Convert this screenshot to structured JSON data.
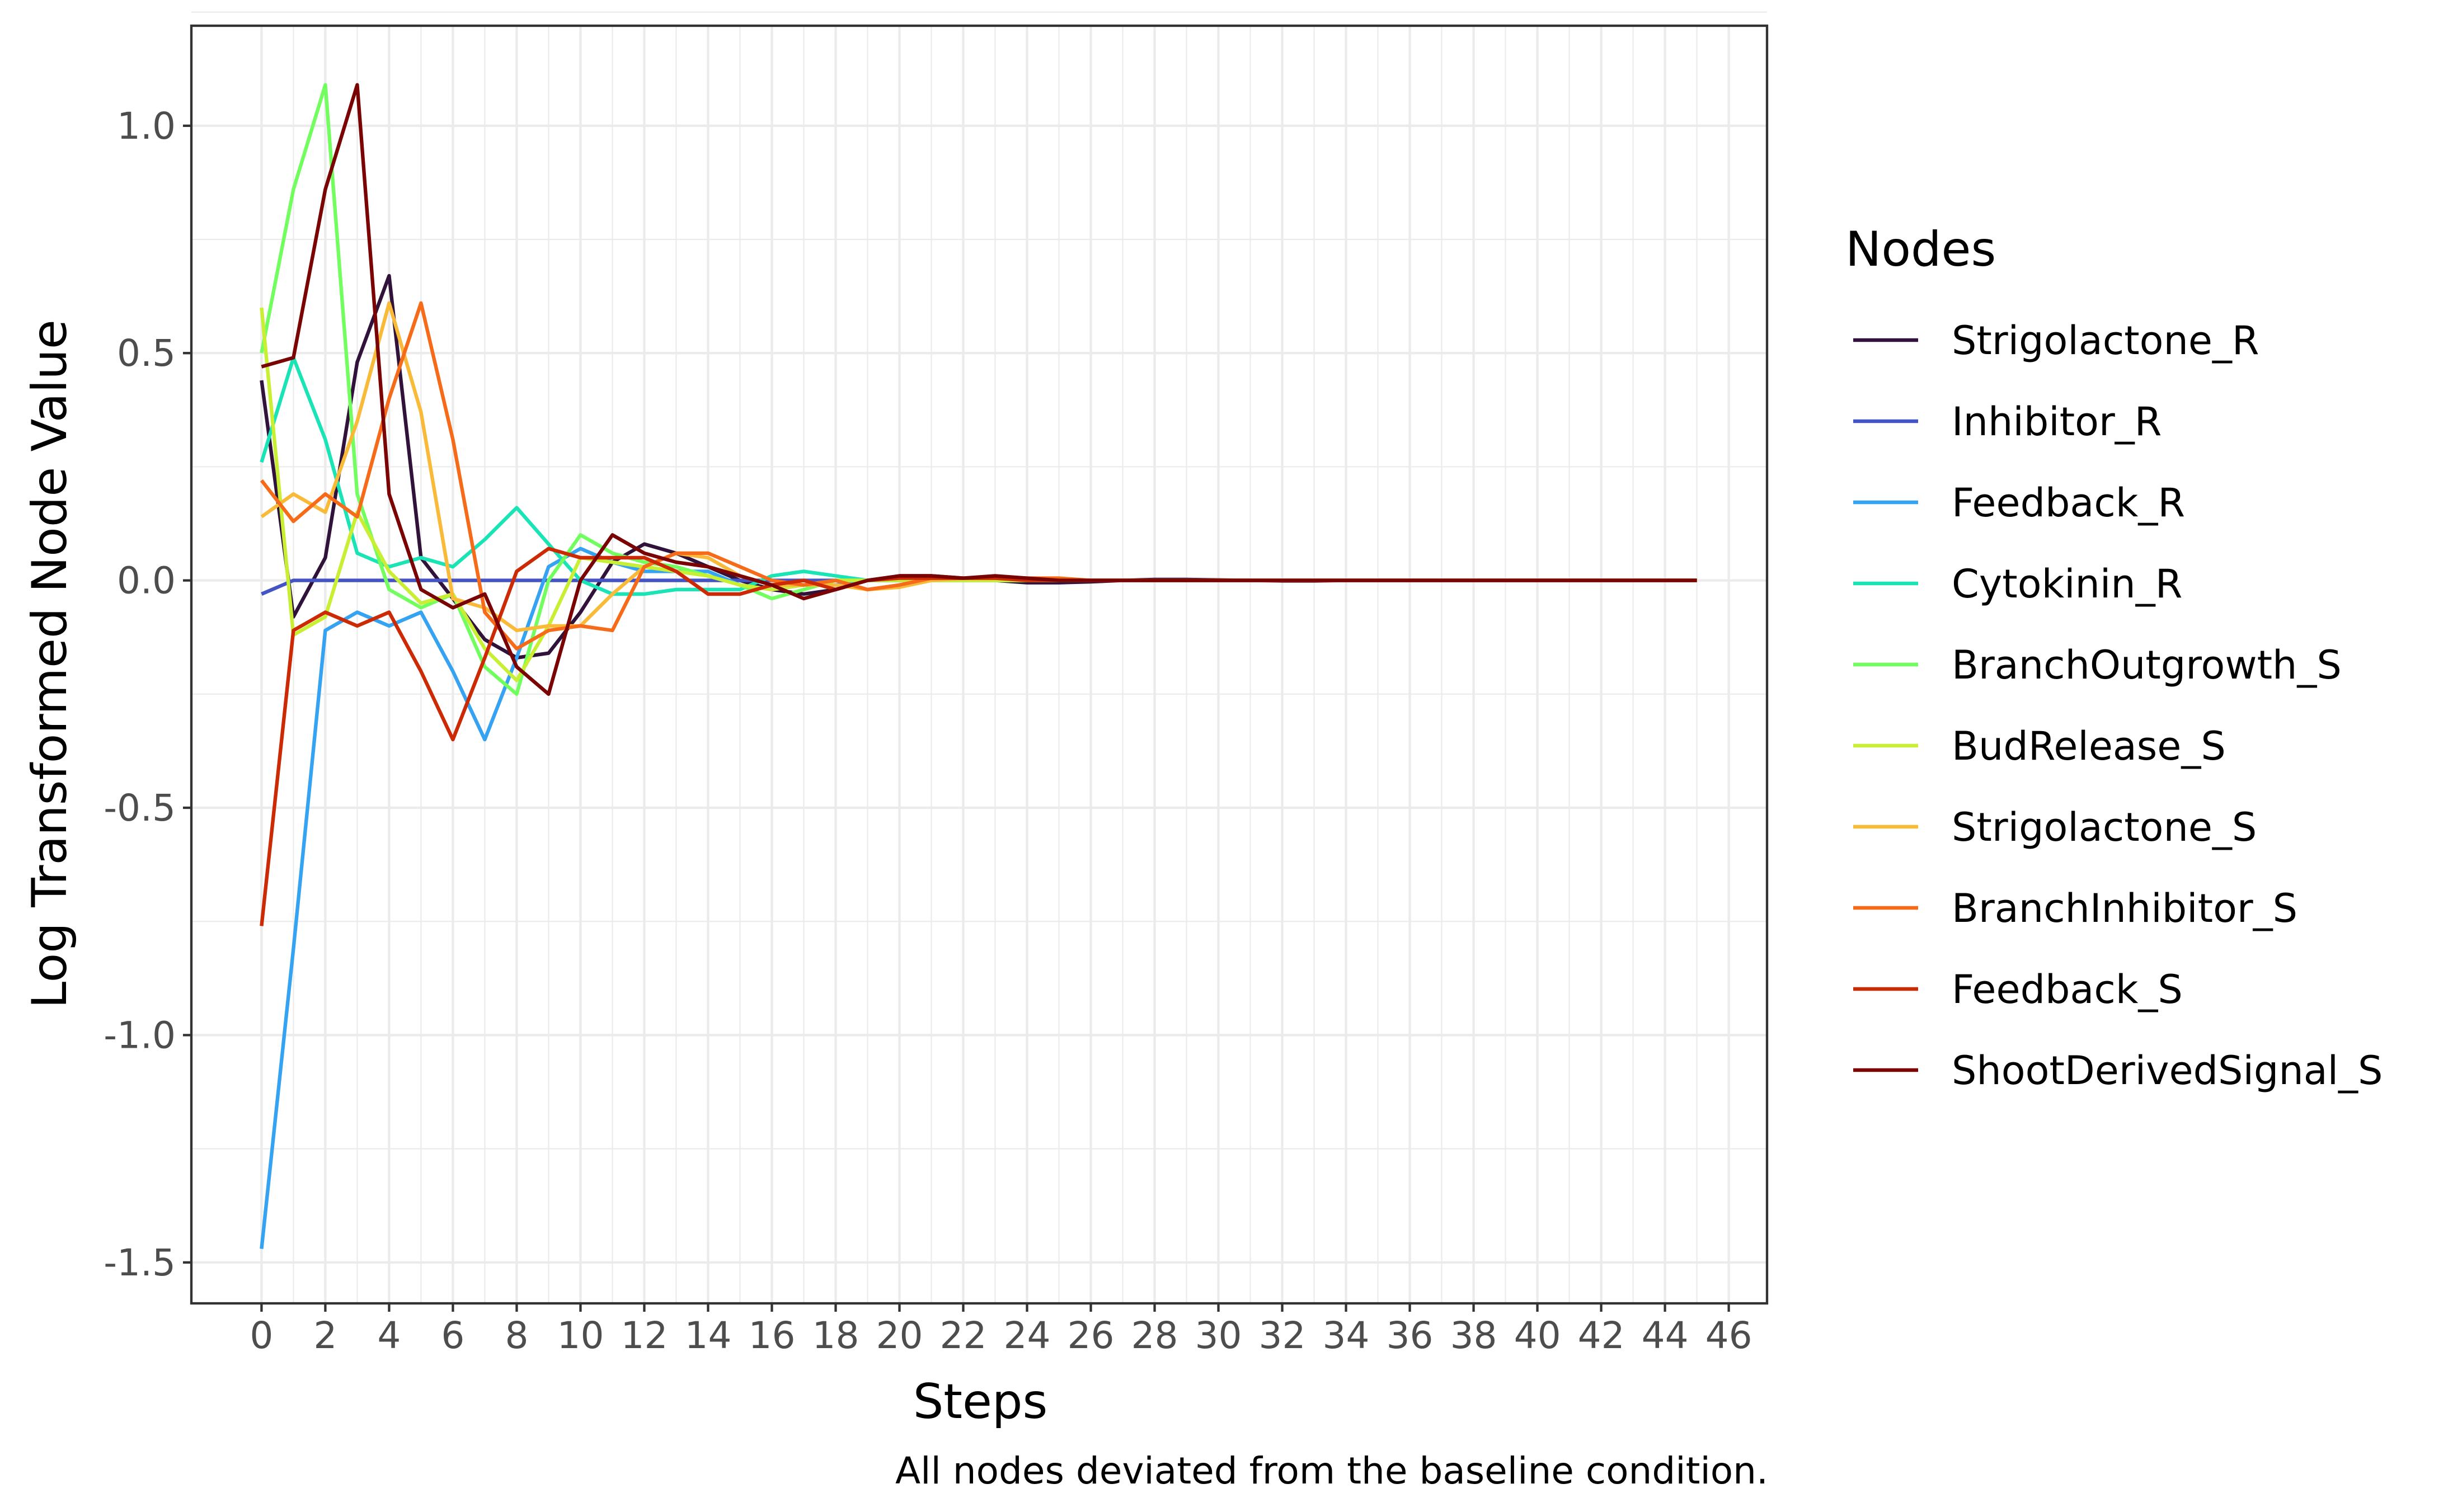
{
  "chart_data": {
    "type": "line",
    "title": "",
    "xlabel": "Steps",
    "ylabel": "Log Transformed Node Value",
    "caption": "All nodes deviated from the baseline condition.",
    "legend_title": "Nodes",
    "legend_position": "right",
    "grid": true,
    "xlim": [
      -2.2,
      47.2
    ],
    "ylim": [
      -1.59,
      1.22
    ],
    "x_ticks": [
      0,
      2,
      4,
      6,
      8,
      10,
      12,
      14,
      16,
      18,
      20,
      22,
      24,
      26,
      28,
      30,
      32,
      34,
      36,
      38,
      40,
      42,
      44,
      46
    ],
    "x_tick_labels": [
      "0",
      "2",
      "4",
      "6",
      "8",
      "10",
      "12",
      "14",
      "16",
      "18",
      "20",
      "22",
      "24",
      "26",
      "28",
      "30",
      "32",
      "34",
      "36",
      "38",
      "40",
      "42",
      "44",
      "46"
    ],
    "y_ticks": [
      1.0,
      0.5,
      0.0,
      -0.5,
      -1.0,
      -1.5
    ],
    "y_tick_labels": [
      "1.0",
      "0.5",
      "0.0",
      "-0.5",
      "-1.0",
      "-1.5"
    ],
    "x": [
      0,
      1,
      2,
      3,
      4,
      5,
      6,
      7,
      8,
      9,
      10,
      11,
      12,
      13,
      14,
      15,
      16,
      17,
      18,
      19,
      20,
      21,
      22,
      23,
      24,
      25,
      26,
      27,
      28,
      29,
      30,
      31,
      32,
      33,
      34,
      35,
      36,
      37,
      38,
      39,
      40,
      41,
      42,
      43,
      44,
      45
    ],
    "series": [
      {
        "name": "Strigolactone_R",
        "color": "#30123b",
        "values": [
          0.44,
          -0.08,
          0.05,
          0.48,
          0.67,
          0.05,
          -0.04,
          -0.13,
          -0.17,
          -0.16,
          -0.07,
          0.04,
          0.08,
          0.06,
          0.03,
          0.0,
          -0.02,
          -0.03,
          -0.02,
          0.0,
          0.01,
          0.01,
          0.005,
          0.0,
          -0.005,
          -0.005,
          -0.003,
          0.0,
          0.002,
          0.002,
          0.001,
          0.0,
          -0.001,
          -0.001,
          0.0,
          0.0,
          0.0,
          0.0,
          0.0,
          0.0,
          0.0,
          0.0,
          0.0,
          0.0,
          0.0,
          0.0
        ]
      },
      {
        "name": "Inhibitor_R",
        "color": "#4454c4",
        "values": [
          -0.03,
          0.0,
          0.0,
          0.0,
          0.0,
          0.0,
          0.0,
          0.0,
          0.0,
          0.0,
          0.0,
          0.0,
          0.0,
          0.0,
          0.0,
          0.0,
          0.0,
          0.0,
          0.0,
          0.0,
          0.0,
          0.0,
          0.0,
          0.0,
          0.0,
          0.0,
          0.0,
          0.0,
          0.0,
          0.0,
          0.0,
          0.0,
          0.0,
          0.0,
          0.0,
          0.0,
          0.0,
          0.0,
          0.0,
          0.0,
          0.0,
          0.0,
          0.0,
          0.0,
          0.0,
          0.0
        ]
      },
      {
        "name": "Feedback_R",
        "color": "#35a2f2",
        "values": [
          -1.47,
          -0.81,
          -0.11,
          -0.07,
          -0.1,
          -0.07,
          -0.2,
          -0.35,
          -0.17,
          0.03,
          0.07,
          0.04,
          0.02,
          0.02,
          0.02,
          -0.01,
          -0.02,
          -0.01,
          -0.01,
          0.0,
          0.0,
          0.005,
          0.0,
          0.0,
          0.0,
          0.0,
          0.0,
          0.0,
          0.0,
          0.0,
          0.0,
          0.0,
          0.0,
          0.0,
          0.0,
          0.0,
          0.0,
          0.0,
          0.0,
          0.0,
          0.0,
          0.0,
          0.0,
          0.0,
          0.0,
          0.0
        ]
      },
      {
        "name": "Cytokinin_R",
        "color": "#1ae4b6",
        "values": [
          0.26,
          0.49,
          0.31,
          0.06,
          0.03,
          0.05,
          0.03,
          0.09,
          0.16,
          0.08,
          0.0,
          -0.03,
          -0.03,
          -0.02,
          -0.02,
          -0.02,
          0.01,
          0.02,
          0.01,
          0.0,
          0.0,
          0.0,
          0.0,
          0.0,
          0.0,
          0.0,
          0.0,
          0.0,
          0.0,
          0.0,
          0.0,
          0.0,
          0.0,
          0.0,
          0.0,
          0.0,
          0.0,
          0.0,
          0.0,
          0.0,
          0.0,
          0.0,
          0.0,
          0.0,
          0.0,
          0.0
        ]
      },
      {
        "name": "BranchOutgrowth_S",
        "color": "#72fe5e",
        "values": [
          0.5,
          0.86,
          1.09,
          0.19,
          -0.02,
          -0.06,
          -0.03,
          -0.19,
          -0.25,
          0.0,
          0.1,
          0.06,
          0.04,
          0.03,
          0.01,
          -0.01,
          -0.04,
          -0.02,
          0.0,
          0.0,
          0.005,
          0.0,
          0.0,
          0.0,
          0.0,
          0.0,
          0.0,
          0.0,
          0.0,
          0.0,
          0.0,
          0.0,
          0.0,
          0.0,
          0.0,
          0.0,
          0.0,
          0.0,
          0.0,
          0.0,
          0.0,
          0.0,
          0.0,
          0.0,
          0.0,
          0.0
        ]
      },
      {
        "name": "BudRelease_S",
        "color": "#c8ef34",
        "values": [
          0.6,
          -0.12,
          -0.08,
          0.15,
          0.02,
          -0.05,
          -0.03,
          -0.15,
          -0.22,
          -0.1,
          0.05,
          0.04,
          0.03,
          0.02,
          0.01,
          -0.01,
          -0.02,
          -0.01,
          0.0,
          0.0,
          0.0,
          0.0,
          0.0,
          0.0,
          0.0,
          0.0,
          0.0,
          0.0,
          0.0,
          0.0,
          0.0,
          0.0,
          0.0,
          0.0,
          0.0,
          0.0,
          0.0,
          0.0,
          0.0,
          0.0,
          0.0,
          0.0,
          0.0,
          0.0,
          0.0,
          0.0
        ]
      },
      {
        "name": "Strigolactone_S",
        "color": "#faba39",
        "values": [
          0.14,
          0.19,
          0.15,
          0.35,
          0.61,
          0.37,
          -0.04,
          -0.06,
          -0.11,
          -0.1,
          -0.1,
          -0.03,
          0.03,
          0.06,
          0.05,
          0.01,
          -0.01,
          -0.01,
          -0.01,
          -0.02,
          -0.015,
          0.0,
          0.005,
          0.005,
          0.005,
          0.003,
          0.0,
          0.0,
          0.0,
          0.0,
          0.0,
          0.0,
          0.0,
          0.0,
          0.0,
          0.0,
          0.0,
          0.0,
          0.0,
          0.0,
          0.0,
          0.0,
          0.0,
          0.0,
          0.0,
          0.0
        ]
      },
      {
        "name": "BranchInhibitor_S",
        "color": "#f66b19",
        "values": [
          0.22,
          0.13,
          0.19,
          0.14,
          0.4,
          0.61,
          0.31,
          -0.07,
          -0.15,
          -0.11,
          -0.1,
          -0.11,
          0.03,
          0.06,
          0.06,
          0.03,
          0.0,
          -0.01,
          0.0,
          -0.02,
          -0.01,
          0.005,
          0.005,
          0.005,
          0.005,
          0.005,
          0.0,
          0.0,
          0.0,
          0.0,
          0.0,
          0.0,
          0.0,
          0.0,
          0.0,
          0.0,
          0.0,
          0.0,
          0.0,
          0.0,
          0.0,
          0.0,
          0.0,
          0.0,
          0.0,
          0.0
        ]
      },
      {
        "name": "Feedback_S",
        "color": "#cb2a04",
        "values": [
          -0.76,
          -0.11,
          -0.07,
          -0.1,
          -0.07,
          -0.2,
          -0.35,
          -0.17,
          0.02,
          0.07,
          0.05,
          0.05,
          0.05,
          0.02,
          -0.03,
          -0.03,
          -0.01,
          0.0,
          -0.02,
          0.0,
          0.005,
          0.005,
          0.005,
          0.005,
          0.0,
          0.0,
          0.0,
          0.0,
          0.0,
          0.0,
          0.0,
          0.0,
          0.0,
          0.0,
          0.0,
          0.0,
          0.0,
          0.0,
          0.0,
          0.0,
          0.0,
          0.0,
          0.0,
          0.0,
          0.0,
          0.0
        ]
      },
      {
        "name": "ShootDerivedSignal_S",
        "color": "#7a0403",
        "values": [
          0.47,
          0.49,
          0.86,
          1.09,
          0.19,
          -0.02,
          -0.06,
          -0.03,
          -0.19,
          -0.25,
          0.0,
          0.1,
          0.06,
          0.04,
          0.03,
          0.01,
          -0.01,
          -0.04,
          -0.02,
          0.0,
          0.01,
          0.01,
          0.005,
          0.01,
          0.005,
          0.0,
          0.0,
          0.0,
          0.0,
          0.0,
          0.0,
          0.0,
          0.0,
          0.0,
          0.0,
          0.0,
          0.0,
          0.0,
          0.0,
          0.0,
          0.0,
          0.0,
          0.0,
          0.0,
          0.0,
          0.0
        ]
      }
    ]
  }
}
